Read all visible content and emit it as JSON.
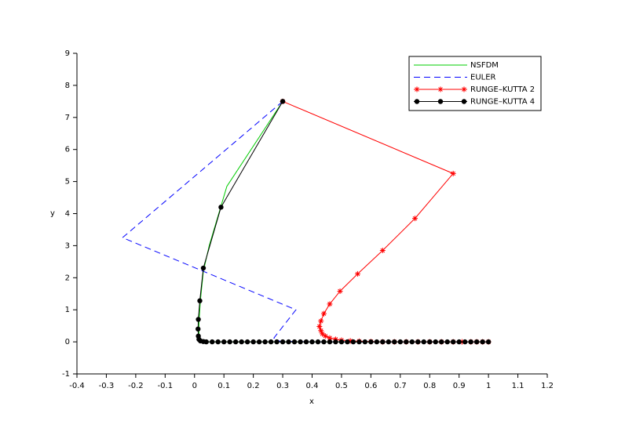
{
  "chart_data": {
    "type": "line",
    "x_label": "x",
    "y_label": "y",
    "xlim": [
      -0.4,
      1.2
    ],
    "ylim": [
      -1,
      9
    ],
    "xticks": [
      -0.4,
      -0.3,
      -0.2,
      -0.1,
      0,
      0.1,
      0.2,
      0.3,
      0.4,
      0.5,
      0.6,
      0.7,
      0.8,
      0.9,
      1,
      1.1,
      1.2
    ],
    "yticks": [
      -1,
      0,
      1,
      2,
      3,
      4,
      5,
      6,
      7,
      8,
      9
    ],
    "legend": "upper right",
    "series": [
      {
        "name": "NSFDM",
        "color": "#00cc00",
        "dash": false,
        "marker": "none",
        "x": [
          0.3,
          0.11,
          0.05,
          0.03,
          0.02,
          0.015,
          0.015,
          0.02,
          0.05,
          0.3,
          0.6,
          1
        ],
        "values": [
          7.5,
          4.85,
          3.0,
          2.2,
          1.3,
          0.6,
          0.15,
          0.02,
          0,
          0,
          0,
          0
        ]
      },
      {
        "name": "EULER",
        "color": "#0000ff",
        "dash": true,
        "marker": "none",
        "x": [
          0.3,
          -0.245,
          0.345,
          0.27,
          0.29,
          0.4,
          0.6,
          0.8,
          1
        ],
        "values": [
          7.5,
          3.25,
          1.0,
          0.12,
          0.02,
          0,
          0,
          0,
          0
        ]
      },
      {
        "name": "RUNGE–KUTTA 2",
        "color": "#ff0000",
        "dash": false,
        "marker": "star",
        "x": [
          0.3,
          0.88,
          0.75,
          0.64,
          0.555,
          0.495,
          0.46,
          0.44,
          0.43,
          0.425,
          0.43,
          0.435,
          0.445,
          0.46,
          0.48,
          0.5,
          0.53,
          0.56,
          0.6,
          0.64,
          0.68,
          0.72,
          0.76,
          0.8,
          0.84,
          0.88,
          0.91,
          0.94,
          0.96,
          0.98,
          1
        ],
        "values": [
          7.5,
          5.25,
          3.85,
          2.85,
          2.12,
          1.58,
          1.18,
          0.88,
          0.65,
          0.48,
          0.35,
          0.25,
          0.18,
          0.12,
          0.08,
          0.05,
          0.03,
          0.02,
          0.01,
          0,
          0,
          0,
          0,
          0,
          0,
          0,
          0,
          0,
          0,
          0,
          0
        ]
      },
      {
        "name": "RUNGE–KUTTA 4",
        "color": "#000000",
        "dash": false,
        "marker": "circle",
        "x": [
          0.3,
          0.09,
          0.03,
          0.018,
          0.013,
          0.012,
          0.013,
          0.015,
          0.02,
          0.03,
          0.04,
          0.06,
          0.08,
          0.1,
          0.12,
          0.14,
          0.16,
          0.18,
          0.2,
          0.22,
          0.24,
          0.26,
          0.28,
          0.3,
          0.32,
          0.34,
          0.36,
          0.38,
          0.4,
          0.42,
          0.44,
          0.46,
          0.48,
          0.5,
          0.52,
          0.54,
          0.56,
          0.58,
          0.6,
          0.62,
          0.64,
          0.66,
          0.68,
          0.7,
          0.72,
          0.74,
          0.76,
          0.78,
          0.8,
          0.82,
          0.84,
          0.86,
          0.88,
          0.9,
          0.92,
          0.94,
          0.96,
          0.98,
          1
        ],
        "values": [
          7.5,
          4.2,
          2.3,
          1.28,
          0.7,
          0.4,
          0.18,
          0.08,
          0.03,
          0.01,
          0,
          0,
          0,
          0,
          0,
          0,
          0,
          0,
          0,
          0,
          0,
          0,
          0,
          0,
          0,
          0,
          0,
          0,
          0,
          0,
          0,
          0,
          0,
          0,
          0,
          0,
          0,
          0,
          0,
          0,
          0,
          0,
          0,
          0,
          0,
          0,
          0,
          0,
          0,
          0,
          0,
          0,
          0,
          0,
          0,
          0,
          0,
          0,
          0
        ]
      }
    ]
  }
}
